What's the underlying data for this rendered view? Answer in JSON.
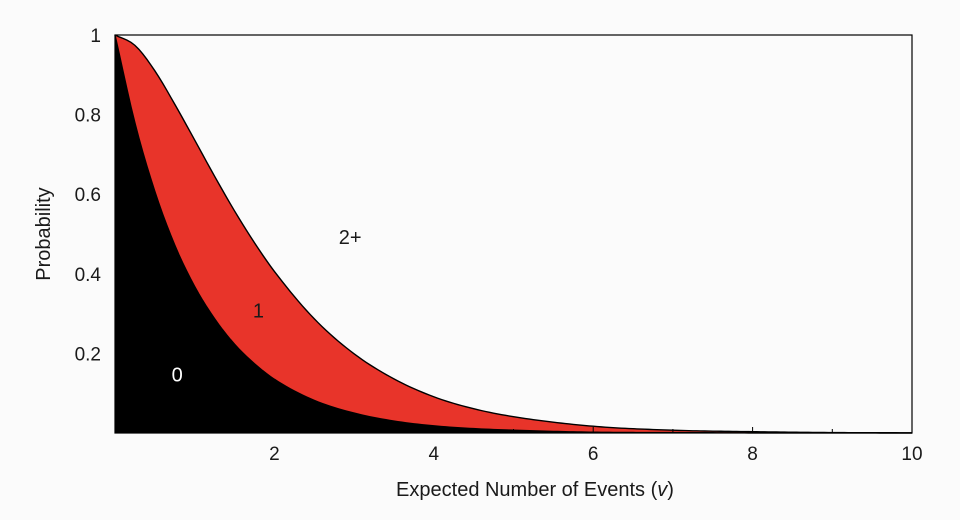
{
  "chart_data": {
    "type": "area",
    "title": "",
    "xlabel_prefix": "Expected Number of Events (",
    "xlabel_var": "v",
    "xlabel_suffix": ")",
    "ylabel": "Probability",
    "xlim": [
      0,
      10
    ],
    "ylim": [
      0,
      1
    ],
    "x_ticks": [
      2,
      4,
      6,
      8,
      10
    ],
    "x_minor_ticks": [
      1,
      3,
      5,
      7,
      9
    ],
    "y_ticks": [
      0.2,
      0.4,
      0.6,
      0.8,
      1
    ],
    "y_tick_labels": [
      "0.2",
      "0.4",
      "0.6",
      "0.8",
      "1"
    ],
    "grid": false,
    "stacked": true,
    "x": [
      0,
      0.25,
      0.5,
      0.75,
      1,
      1.25,
      1.5,
      1.75,
      2,
      2.5,
      3,
      3.5,
      4,
      4.5,
      5,
      6,
      7,
      8,
      9,
      10
    ],
    "series": [
      {
        "name": "0",
        "color": "#000000",
        "values": [
          1,
          0.779,
          0.607,
          0.472,
          0.368,
          0.287,
          0.223,
          0.174,
          0.135,
          0.082,
          0.05,
          0.03,
          0.018,
          0.011,
          0.007,
          0.002,
          0.001,
          0.0003,
          0.0001,
          0.0
        ]
      },
      {
        "name": "1",
        "color": "#e8342a",
        "values": [
          0,
          0.195,
          0.303,
          0.354,
          0.368,
          0.358,
          0.335,
          0.304,
          0.271,
          0.205,
          0.149,
          0.106,
          0.073,
          0.05,
          0.034,
          0.015,
          0.006,
          0.003,
          0.001,
          0.0005
        ]
      },
      {
        "name": "2+",
        "color": "#fbfbfb",
        "values": [
          0,
          0.026,
          0.09,
          0.174,
          0.264,
          0.355,
          0.442,
          0.522,
          0.594,
          0.713,
          0.801,
          0.864,
          0.909,
          0.939,
          0.959,
          0.983,
          0.993,
          0.997,
          0.999,
          0.9995
        ]
      }
    ],
    "annotations": [
      {
        "text": "0",
        "x": 0.78,
        "y": 0.13,
        "color": "#ffffff"
      },
      {
        "text": "1",
        "x": 1.8,
        "y": 0.29,
        "color": "#1a1a1a"
      },
      {
        "text": "2+",
        "x": 2.95,
        "y": 0.475,
        "color": "#1a1a1a"
      }
    ]
  }
}
